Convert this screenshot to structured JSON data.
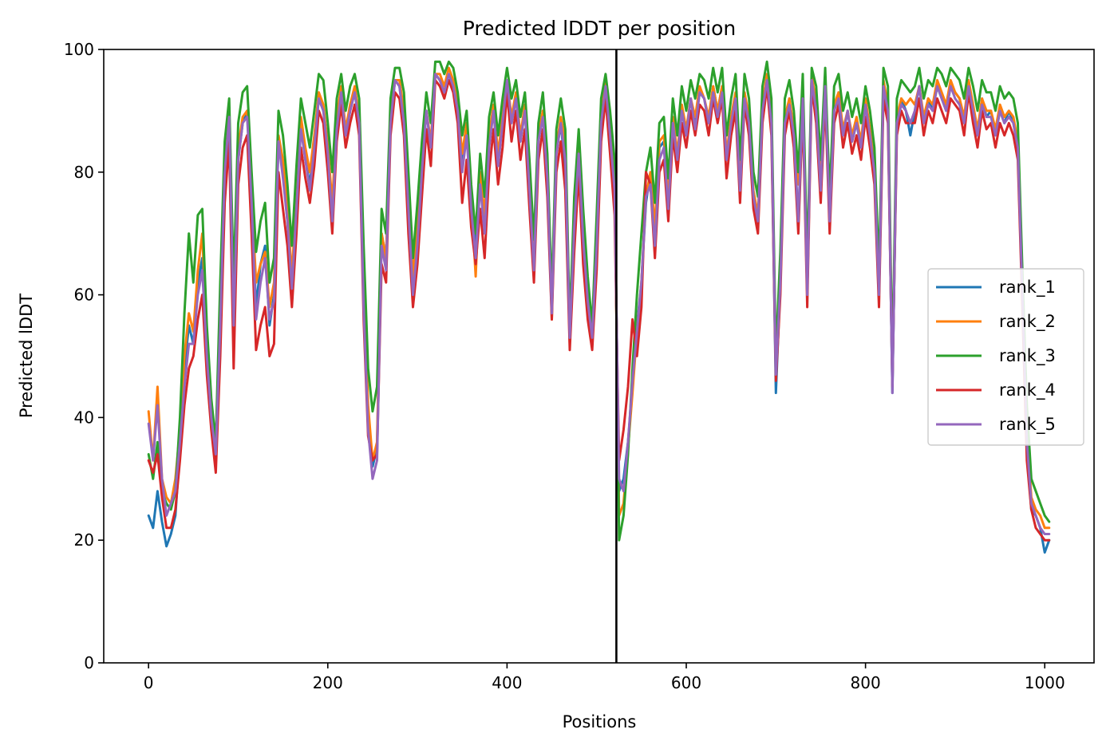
{
  "chart_data": {
    "type": "line",
    "title": "Predicted lDDT per position",
    "xlabel": "Positions",
    "ylabel": "Predicted lDDT",
    "xlim": [
      -50,
      1055
    ],
    "ylim": [
      0,
      100
    ],
    "xticks": [
      0,
      200,
      400,
      600,
      800,
      1000
    ],
    "yticks": [
      0,
      20,
      40,
      60,
      80,
      100
    ],
    "grid": false,
    "legend_position": "center-right",
    "vline_x": 522,
    "x": [
      0,
      5,
      10,
      15,
      20,
      25,
      30,
      35,
      40,
      45,
      50,
      55,
      60,
      65,
      70,
      75,
      80,
      85,
      90,
      95,
      100,
      105,
      110,
      115,
      120,
      125,
      130,
      135,
      140,
      145,
      150,
      155,
      160,
      165,
      170,
      175,
      180,
      185,
      190,
      195,
      200,
      205,
      210,
      215,
      220,
      225,
      230,
      235,
      240,
      245,
      250,
      255,
      260,
      265,
      270,
      275,
      280,
      285,
      290,
      295,
      300,
      305,
      310,
      315,
      320,
      325,
      330,
      335,
      340,
      345,
      350,
      355,
      360,
      365,
      370,
      375,
      380,
      385,
      390,
      395,
      400,
      405,
      410,
      415,
      420,
      425,
      430,
      435,
      440,
      445,
      450,
      455,
      460,
      465,
      470,
      475,
      480,
      485,
      490,
      495,
      500,
      505,
      510,
      515,
      520,
      525,
      530,
      535,
      540,
      545,
      550,
      555,
      560,
      565,
      570,
      575,
      580,
      585,
      590,
      595,
      600,
      605,
      610,
      615,
      620,
      625,
      630,
      635,
      640,
      645,
      650,
      655,
      660,
      665,
      670,
      675,
      680,
      685,
      690,
      695,
      700,
      705,
      710,
      715,
      720,
      725,
      730,
      735,
      740,
      745,
      750,
      755,
      760,
      765,
      770,
      775,
      780,
      785,
      790,
      795,
      800,
      805,
      810,
      815,
      820,
      825,
      830,
      835,
      840,
      845,
      850,
      855,
      860,
      865,
      870,
      875,
      880,
      885,
      890,
      895,
      900,
      905,
      910,
      915,
      920,
      925,
      930,
      935,
      940,
      945,
      950,
      955,
      960,
      965,
      970,
      975,
      980,
      985,
      990,
      995,
      1000,
      1005
    ],
    "series": [
      {
        "name": "rank_1",
        "color": "#1f77b4",
        "values": [
          24,
          22,
          28,
          23,
          19,
          21,
          24,
          35,
          48,
          55,
          52,
          62,
          66,
          50,
          40,
          33,
          55,
          80,
          90,
          55,
          82,
          88,
          90,
          75,
          58,
          65,
          68,
          55,
          60,
          85,
          80,
          72,
          62,
          75,
          88,
          82,
          78,
          85,
          92,
          90,
          85,
          72,
          88,
          93,
          86,
          90,
          93,
          88,
          60,
          40,
          32,
          35,
          70,
          66,
          88,
          95,
          94,
          88,
          75,
          62,
          70,
          80,
          90,
          84,
          96,
          95,
          93,
          96,
          94,
          90,
          82,
          87,
          75,
          68,
          80,
          72,
          85,
          90,
          82,
          88,
          95,
          88,
          92,
          85,
          90,
          78,
          65,
          85,
          90,
          80,
          58,
          83,
          88,
          80,
          54,
          72,
          84,
          70,
          60,
          52,
          68,
          88,
          94,
          86,
          78,
          28,
          30,
          36,
          45,
          55,
          62,
          75,
          80,
          70,
          84,
          85,
          75,
          88,
          82,
          90,
          86,
          92,
          88,
          93,
          92,
          88,
          94,
          90,
          94,
          82,
          88,
          92,
          78,
          93,
          88,
          76,
          72,
          90,
          95,
          88,
          44,
          62,
          88,
          92,
          86,
          72,
          92,
          60,
          96,
          90,
          78,
          94,
          72,
          90,
          93,
          86,
          90,
          85,
          88,
          84,
          91,
          86,
          80,
          60,
          94,
          90,
          44,
          88,
          92,
          90,
          86,
          90,
          94,
          88,
          92,
          90,
          94,
          92,
          90,
          94,
          93,
          92,
          88,
          95,
          90,
          86,
          92,
          89,
          90,
          86,
          90,
          88,
          90,
          88,
          84,
          60,
          35,
          25,
          24,
          22,
          18,
          20
        ]
      },
      {
        "name": "rank_2",
        "color": "#ff7f0e",
        "values": [
          41,
          33,
          45,
          30,
          27,
          26,
          30,
          38,
          50,
          57,
          54,
          64,
          70,
          52,
          42,
          35,
          58,
          82,
          90,
          58,
          84,
          89,
          90,
          76,
          62,
          65,
          67,
          58,
          62,
          86,
          82,
          74,
          63,
          77,
          89,
          84,
          80,
          86,
          93,
          91,
          84,
          75,
          89,
          94,
          87,
          91,
          94,
          89,
          62,
          42,
          33,
          36,
          70,
          66,
          89,
          95,
          95,
          90,
          76,
          63,
          71,
          82,
          90,
          85,
          96,
          96,
          94,
          97,
          95,
          91,
          83,
          88,
          76,
          63,
          80,
          73,
          86,
          91,
          83,
          89,
          95,
          89,
          93,
          86,
          91,
          79,
          66,
          86,
          90,
          80,
          56,
          84,
          89,
          85,
          52,
          73,
          84,
          71,
          60,
          53,
          70,
          89,
          95,
          87,
          79,
          24,
          26,
          35,
          44,
          54,
          62,
          76,
          80,
          71,
          85,
          86,
          76,
          89,
          83,
          91,
          87,
          92,
          89,
          94,
          92,
          89,
          94,
          90,
          94,
          83,
          89,
          93,
          79,
          93,
          89,
          77,
          73,
          91,
          96,
          89,
          48,
          64,
          89,
          92,
          87,
          78,
          93,
          62,
          96,
          91,
          79,
          95,
          73,
          91,
          93,
          87,
          90,
          86,
          89,
          85,
          92,
          87,
          81,
          61,
          95,
          91,
          46,
          89,
          92,
          91,
          92,
          91,
          94,
          89,
          92,
          91,
          95,
          93,
          91,
          95,
          93,
          92,
          89,
          95,
          91,
          87,
          92,
          90,
          90,
          87,
          91,
          89,
          90,
          89,
          85,
          62,
          38,
          27,
          25,
          24,
          22,
          22
        ]
      },
      {
        "name": "rank_3",
        "color": "#2ca02c",
        "values": [
          34,
          30,
          36,
          28,
          26,
          25,
          28,
          40,
          57,
          70,
          62,
          73,
          74,
          55,
          43,
          36,
          62,
          85,
          92,
          62,
          88,
          93,
          94,
          80,
          67,
          72,
          75,
          62,
          66,
          90,
          86,
          78,
          68,
          81,
          92,
          88,
          84,
          90,
          96,
          95,
          88,
          80,
          92,
          96,
          90,
          94,
          96,
          92,
          68,
          48,
          41,
          45,
          74,
          70,
          92,
          97,
          97,
          93,
          80,
          66,
          75,
          85,
          93,
          88,
          98,
          98,
          96,
          98,
          97,
          93,
          86,
          90,
          78,
          70,
          83,
          76,
          89,
          93,
          86,
          92,
          97,
          92,
          95,
          89,
          93,
          82,
          69,
          88,
          93,
          83,
          60,
          87,
          92,
          87,
          55,
          76,
          87,
          74,
          63,
          55,
          73,
          92,
          96,
          90,
          82,
          20,
          24,
          34,
          48,
          60,
          70,
          80,
          84,
          75,
          88,
          89,
          79,
          92,
          86,
          94,
          90,
          95,
          92,
          96,
          95,
          92,
          97,
          93,
          97,
          86,
          92,
          96,
          82,
          96,
          92,
          80,
          76,
          94,
          98,
          92,
          50,
          67,
          92,
          95,
          90,
          80,
          96,
          65,
          97,
          94,
          82,
          97,
          76,
          94,
          96,
          90,
          93,
          89,
          92,
          88,
          94,
          90,
          84,
          64,
          97,
          94,
          48,
          92,
          95,
          94,
          93,
          94,
          97,
          92,
          95,
          94,
          97,
          96,
          94,
          97,
          96,
          95,
          92,
          97,
          94,
          90,
          95,
          93,
          93,
          90,
          94,
          92,
          93,
          92,
          88,
          64,
          42,
          30,
          28,
          26,
          24,
          23
        ]
      },
      {
        "name": "rank_4",
        "color": "#d62728",
        "values": [
          33,
          31,
          34,
          27,
          22,
          22,
          25,
          33,
          42,
          48,
          50,
          56,
          60,
          47,
          38,
          31,
          50,
          75,
          85,
          48,
          78,
          84,
          86,
          70,
          51,
          55,
          58,
          50,
          52,
          80,
          74,
          68,
          58,
          70,
          84,
          79,
          75,
          81,
          90,
          88,
          80,
          70,
          85,
          91,
          84,
          88,
          91,
          86,
          56,
          37,
          33,
          34,
          65,
          62,
          86,
          93,
          92,
          86,
          70,
          58,
          65,
          76,
          87,
          81,
          95,
          94,
          92,
          95,
          93,
          88,
          75,
          82,
          71,
          65,
          74,
          66,
          80,
          87,
          78,
          84,
          93,
          85,
          90,
          82,
          87,
          74,
          62,
          82,
          87,
          76,
          56,
          80,
          85,
          77,
          51,
          67,
          80,
          65,
          56,
          51,
          64,
          85,
          92,
          83,
          73,
          33,
          38,
          45,
          56,
          50,
          58,
          80,
          78,
          66,
          80,
          82,
          72,
          86,
          80,
          88,
          84,
          90,
          86,
          91,
          90,
          86,
          92,
          88,
          92,
          79,
          86,
          90,
          75,
          91,
          86,
          74,
          70,
          88,
          94,
          86,
          46,
          60,
          86,
          90,
          84,
          70,
          90,
          58,
          94,
          88,
          75,
          92,
          70,
          88,
          91,
          84,
          88,
          83,
          86,
          82,
          89,
          84,
          78,
          58,
          92,
          88,
          45,
          86,
          90,
          88,
          88,
          88,
          92,
          86,
          90,
          88,
          92,
          90,
          88,
          92,
          91,
          90,
          86,
          93,
          88,
          84,
          90,
          87,
          88,
          84,
          88,
          86,
          88,
          86,
          82,
          58,
          33,
          25,
          22,
          21,
          20,
          20
        ]
      },
      {
        "name": "rank_5",
        "color": "#9467bd",
        "values": [
          39,
          33,
          42,
          30,
          24,
          26,
          28,
          36,
          45,
          52,
          52,
          60,
          64,
          50,
          40,
          34,
          55,
          80,
          89,
          55,
          82,
          88,
          89,
          75,
          56,
          62,
          66,
          56,
          59,
          85,
          79,
          72,
          61,
          74,
          87,
          82,
          77,
          84,
          92,
          90,
          83,
          72,
          87,
          93,
          86,
          90,
          93,
          88,
          58,
          38,
          30,
          33,
          68,
          64,
          88,
          95,
          94,
          88,
          74,
          60,
          68,
          80,
          90,
          84,
          96,
          95,
          93,
          96,
          94,
          90,
          80,
          86,
          74,
          66,
          78,
          70,
          84,
          90,
          81,
          88,
          95,
          88,
          92,
          85,
          90,
          77,
          64,
          85,
          89,
          79,
          57,
          83,
          88,
          82,
          53,
          71,
          83,
          69,
          59,
          53,
          68,
          88,
          94,
          86,
          77,
          30,
          28,
          36,
          46,
          54,
          62,
          76,
          78,
          68,
          82,
          84,
          74,
          88,
          82,
          90,
          86,
          92,
          87,
          93,
          92,
          88,
          93,
          89,
          93,
          82,
          88,
          92,
          77,
          92,
          88,
          76,
          72,
          90,
          95,
          88,
          47,
          62,
          88,
          91,
          86,
          72,
          92,
          60,
          95,
          90,
          77,
          94,
          72,
          90,
          92,
          86,
          90,
          85,
          88,
          84,
          91,
          86,
          80,
          60,
          94,
          90,
          44,
          88,
          91,
          90,
          88,
          90,
          94,
          88,
          91,
          90,
          94,
          92,
          90,
          94,
          92,
          91,
          88,
          94,
          90,
          86,
          91,
          89,
          89,
          86,
          90,
          88,
          89,
          88,
          84,
          60,
          36,
          26,
          24,
          22,
          21,
          21
        ]
      }
    ]
  }
}
